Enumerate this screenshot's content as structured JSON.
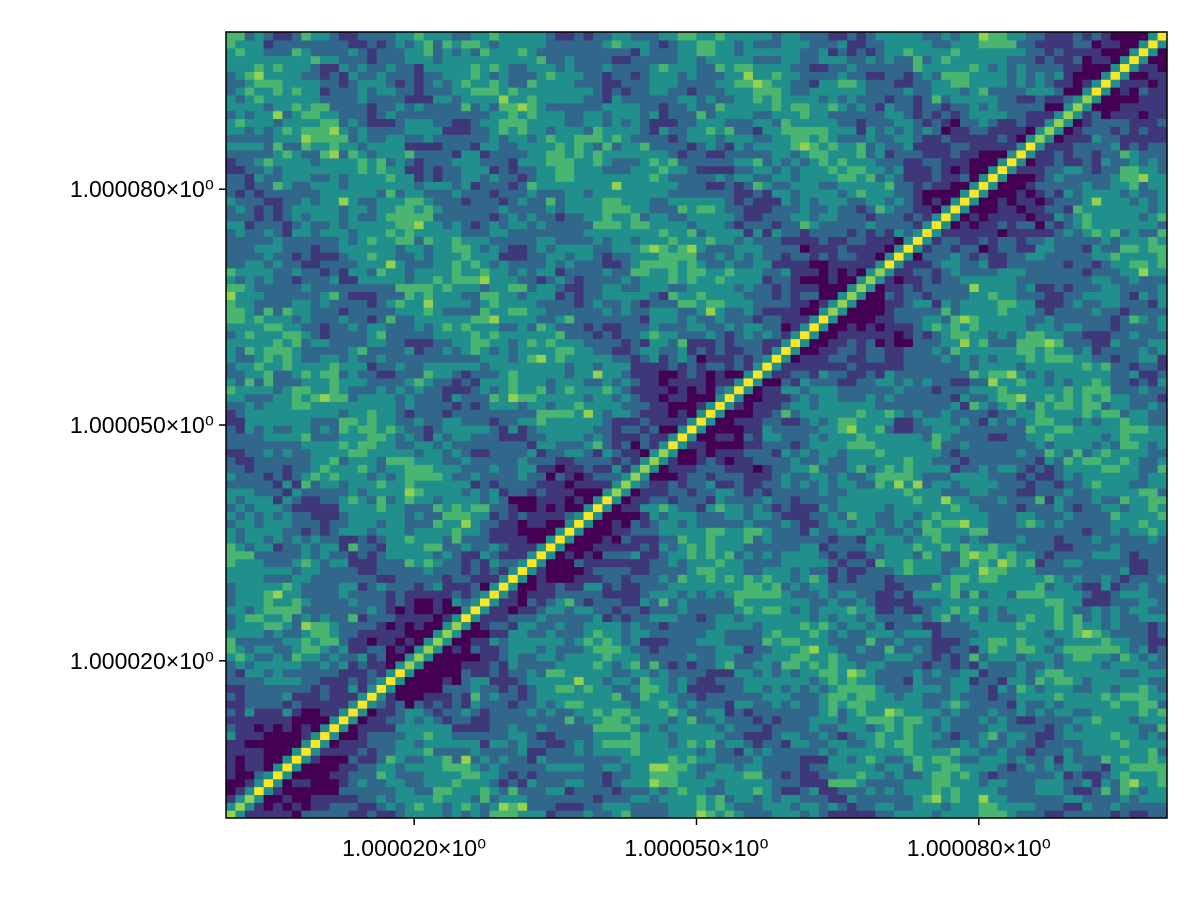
{
  "chart_data": {
    "type": "heatmap",
    "title": "",
    "xlabel": "",
    "ylabel": "",
    "xlim": [
      1.0,
      1.0001
    ],
    "ylim": [
      1.0,
      1.0001
    ],
    "x_ticks": [
      {
        "value": 1.00002,
        "label": "1.000020×10⁰"
      },
      {
        "value": 1.00005,
        "label": "1.000050×10⁰"
      },
      {
        "value": 1.00008,
        "label": "1.000080×10⁰"
      }
    ],
    "y_ticks": [
      {
        "value": 1.00002,
        "label": "1.000020×10⁰"
      },
      {
        "value": 1.00005,
        "label": "1.000050×10⁰"
      },
      {
        "value": 1.00008,
        "label": "1.000080×10⁰"
      }
    ],
    "colormap": "viridis",
    "colors": [
      "#440154",
      "#3b528b",
      "#21908d",
      "#5dc863",
      "#fde725"
    ],
    "plot_type": "filled contour",
    "grid": false,
    "legend": "none",
    "pattern": {
      "diagonal": "bright narrow ridge along y = x, flanked by a dark (low) band",
      "off_diagonal": "mid-range teal/blue values with scattered bright spots"
    }
  }
}
